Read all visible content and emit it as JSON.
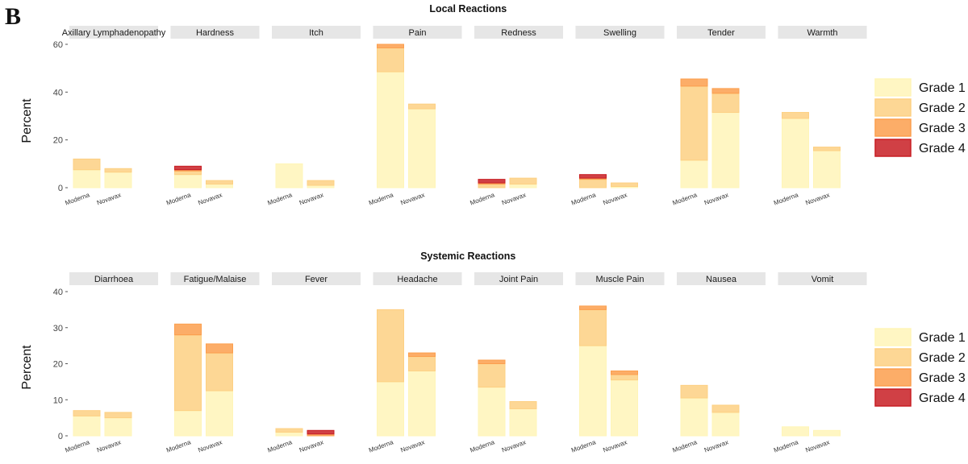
{
  "figure": {
    "panel_letter": "B"
  },
  "chart_data": [
    {
      "type": "bar",
      "stacked": true,
      "title": "Local Reactions",
      "ylabel": "Percent",
      "ylim": [
        0,
        60
      ],
      "yticks": [
        0,
        20,
        40,
        60
      ],
      "categories": [
        "Moderna",
        "Novavax"
      ],
      "legend": {
        "position": "right",
        "entries": [
          "Grade 1",
          "Grade 2",
          "Grade 3",
          "Grade 4"
        ]
      },
      "grade_colors": [
        "#fff5b8",
        "#fdd083",
        "#fc9f4e",
        "#c81e24"
      ],
      "facets": [
        {
          "label": "Axillary Lymphadenopathy",
          "values": [
            [
              7.5,
              4.5,
              0,
              0
            ],
            [
              6.5,
              1.5,
              0,
              0
            ]
          ]
        },
        {
          "label": "Hardness",
          "values": [
            [
              5.5,
              1.5,
              0.5,
              1.5
            ],
            [
              1.5,
              1.5,
              0,
              0
            ]
          ]
        },
        {
          "label": "Itch",
          "values": [
            [
              10,
              0,
              0,
              0
            ],
            [
              1,
              2,
              0,
              0
            ]
          ]
        },
        {
          "label": "Pain",
          "values": [
            [
              48.5,
              10,
              1.5,
              0
            ],
            [
              33,
              2,
              0,
              0
            ]
          ]
        },
        {
          "label": "Redness",
          "values": [
            [
              0,
              1.5,
              0.5,
              1.5
            ],
            [
              1.5,
              2.5,
              0,
              0
            ]
          ]
        },
        {
          "label": "Swelling",
          "values": [
            [
              0,
              3.5,
              0.5,
              1.5
            ],
            [
              0.5,
              1.5,
              0,
              0
            ]
          ]
        },
        {
          "label": "Tender",
          "values": [
            [
              11.5,
              31,
              3,
              0
            ],
            [
              31.5,
              8,
              2,
              0
            ]
          ]
        },
        {
          "label": "Warmth",
          "values": [
            [
              29,
              2.5,
              0,
              0
            ],
            [
              15.5,
              1.5,
              0,
              0
            ]
          ]
        }
      ]
    },
    {
      "type": "bar",
      "stacked": true,
      "title": "Systemic Reactions",
      "ylabel": "Percent",
      "ylim": [
        0,
        40
      ],
      "yticks": [
        0,
        10,
        20,
        30,
        40
      ],
      "categories": [
        "Moderna",
        "Novavax"
      ],
      "legend": {
        "position": "right",
        "entries": [
          "Grade 1",
          "Grade 2",
          "Grade 3",
          "Grade 4"
        ]
      },
      "grade_colors": [
        "#fff5b8",
        "#fdd083",
        "#fc9f4e",
        "#c81e24"
      ],
      "facets": [
        {
          "label": "Diarrhoea",
          "values": [
            [
              5.5,
              1.5,
              0,
              0
            ],
            [
              5,
              1.5,
              0,
              0
            ]
          ]
        },
        {
          "label": "Fatigue/Malaise",
          "values": [
            [
              7,
              21,
              3,
              0
            ],
            [
              12.5,
              10.5,
              2.5,
              0
            ]
          ]
        },
        {
          "label": "Fever",
          "values": [
            [
              1,
              1,
              0,
              0
            ],
            [
              0,
              0,
              0.5,
              1
            ]
          ]
        },
        {
          "label": "Headache",
          "values": [
            [
              15,
              20,
              0,
              0
            ],
            [
              18,
              4,
              1,
              0
            ]
          ]
        },
        {
          "label": "Joint Pain",
          "values": [
            [
              13.5,
              6.5,
              1,
              0
            ],
            [
              7.5,
              2,
              0,
              0
            ]
          ]
        },
        {
          "label": "Muscle Pain",
          "values": [
            [
              25,
              10,
              1,
              0
            ],
            [
              15.5,
              1.5,
              1,
              0
            ]
          ]
        },
        {
          "label": "Nausea",
          "values": [
            [
              10.5,
              3.5,
              0,
              0
            ],
            [
              6.5,
              2,
              0,
              0
            ]
          ]
        },
        {
          "label": "Vomit",
          "values": [
            [
              2.5,
              0,
              0,
              0
            ],
            [
              1.5,
              0,
              0,
              0
            ]
          ]
        }
      ]
    }
  ]
}
